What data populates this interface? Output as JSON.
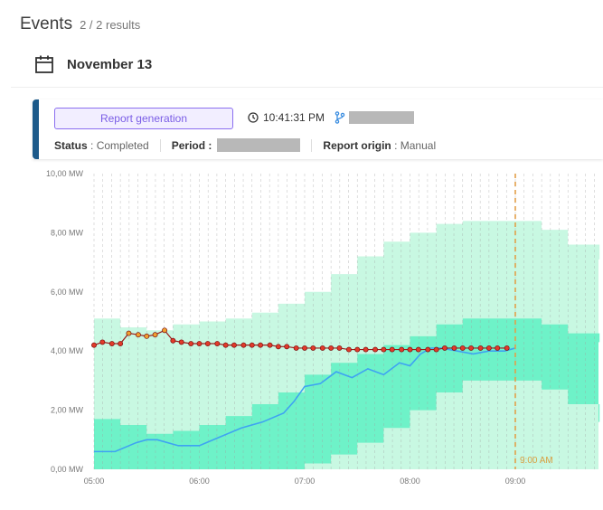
{
  "header": {
    "title": "Events",
    "count": "2 / 2 results"
  },
  "date_row": {
    "icon": "calendar-icon",
    "label": "November 13"
  },
  "card": {
    "accent_color": "#1c5a8a",
    "report_button": "Report generation",
    "time": "10:41:31 PM",
    "status_key": "Status",
    "status_value": "Completed",
    "period_key": "Period",
    "origin_key": "Report origin",
    "origin_value": "Manual"
  },
  "chart_data": {
    "type": "area",
    "y_ticks": [
      "10,00 MW",
      "8,00 MW",
      "6,00 MW",
      "4,00 MW",
      "2,00 MW",
      "0,00 MW"
    ],
    "x_ticks": [
      "05:00",
      "06:00",
      "07:00",
      "08:00",
      "09:00"
    ],
    "ylim": [
      0,
      10
    ],
    "xlim": [
      5.0,
      9.8
    ],
    "colors": {
      "outer_band": "#c8f8e2",
      "inner_band": "#6ef2c8",
      "actual_line": "#3ea3f2",
      "forecast_line": "#9a1a1a",
      "forecast_point": "#e23a2a",
      "forecast_point_alt": "#f0a030",
      "now_line": "#e2a04a"
    },
    "now_marker": {
      "x": 9.0,
      "label": "9:00 AM"
    },
    "bands": {
      "x": [
        5.0,
        5.25,
        5.5,
        5.75,
        6.0,
        6.25,
        6.5,
        6.75,
        7.0,
        7.25,
        7.5,
        7.75,
        8.0,
        8.25,
        8.5,
        8.75,
        9.0,
        9.25,
        9.5,
        9.8
      ],
      "outer_upper": [
        5.1,
        4.8,
        4.7,
        4.9,
        5.0,
        5.1,
        5.3,
        5.6,
        6.0,
        6.6,
        7.2,
        7.7,
        8.0,
        8.3,
        8.4,
        8.4,
        8.4,
        8.1,
        7.6,
        7.1
      ],
      "outer_lower": [
        0.0,
        0.0,
        0.0,
        0.0,
        0.0,
        0.0,
        0.0,
        0.0,
        0.0,
        0.0,
        0.0,
        0.0,
        0.0,
        0.0,
        0.0,
        0.0,
        0.0,
        0.0,
        0.0,
        0.0
      ],
      "inner_upper": [
        1.7,
        1.5,
        1.2,
        1.3,
        1.5,
        1.8,
        2.2,
        2.6,
        3.2,
        3.6,
        3.9,
        4.2,
        4.5,
        4.9,
        5.1,
        5.1,
        5.1,
        4.9,
        4.6,
        4.3
      ],
      "inner_lower": [
        0.0,
        0.0,
        0.0,
        0.0,
        0.0,
        0.0,
        0.0,
        0.0,
        0.2,
        0.5,
        0.9,
        1.4,
        2.0,
        2.6,
        3.0,
        3.0,
        3.0,
        2.7,
        2.2,
        1.6
      ]
    },
    "series": [
      {
        "name": "",
        "role": "actual",
        "x": [
          5.0,
          5.2,
          5.4,
          5.5,
          5.6,
          5.8,
          6.0,
          6.2,
          6.4,
          6.6,
          6.8,
          6.9,
          7.0,
          7.15,
          7.3,
          7.45,
          7.6,
          7.75,
          7.9,
          8.0,
          8.1,
          8.2,
          8.3,
          8.45,
          8.6,
          8.75,
          8.9,
          9.0
        ],
        "y": [
          0.6,
          0.6,
          0.9,
          1.0,
          1.0,
          0.8,
          0.8,
          1.1,
          1.4,
          1.6,
          1.9,
          2.3,
          2.8,
          2.9,
          3.3,
          3.1,
          3.4,
          3.2,
          3.6,
          3.5,
          3.9,
          4.1,
          4.1,
          4.0,
          3.9,
          4.0,
          4.0,
          4.1
        ]
      },
      {
        "name": "",
        "role": "forecast",
        "x": [
          5.0,
          5.08,
          5.17,
          5.25,
          5.33,
          5.42,
          5.5,
          5.58,
          5.67,
          5.75,
          5.83,
          5.92,
          6.0,
          6.08,
          6.17,
          6.25,
          6.33,
          6.42,
          6.5,
          6.58,
          6.67,
          6.75,
          6.83,
          6.92,
          7.0,
          7.08,
          7.17,
          7.25,
          7.33,
          7.42,
          7.5,
          7.58,
          7.67,
          7.75,
          7.83,
          7.92,
          8.0,
          8.08,
          8.17,
          8.25,
          8.33,
          8.42,
          8.5,
          8.58,
          8.67,
          8.75,
          8.83,
          8.92
        ],
        "y": [
          4.2,
          4.3,
          4.25,
          4.25,
          4.6,
          4.55,
          4.5,
          4.55,
          4.7,
          4.35,
          4.3,
          4.25,
          4.25,
          4.25,
          4.25,
          4.2,
          4.2,
          4.2,
          4.2,
          4.2,
          4.2,
          4.15,
          4.15,
          4.1,
          4.1,
          4.1,
          4.1,
          4.1,
          4.1,
          4.05,
          4.05,
          4.05,
          4.05,
          4.05,
          4.05,
          4.05,
          4.05,
          4.05,
          4.05,
          4.05,
          4.1,
          4.1,
          4.1,
          4.1,
          4.1,
          4.1,
          4.1,
          4.1
        ],
        "alt_points": [
          4,
          5,
          6,
          7,
          8
        ]
      }
    ]
  }
}
